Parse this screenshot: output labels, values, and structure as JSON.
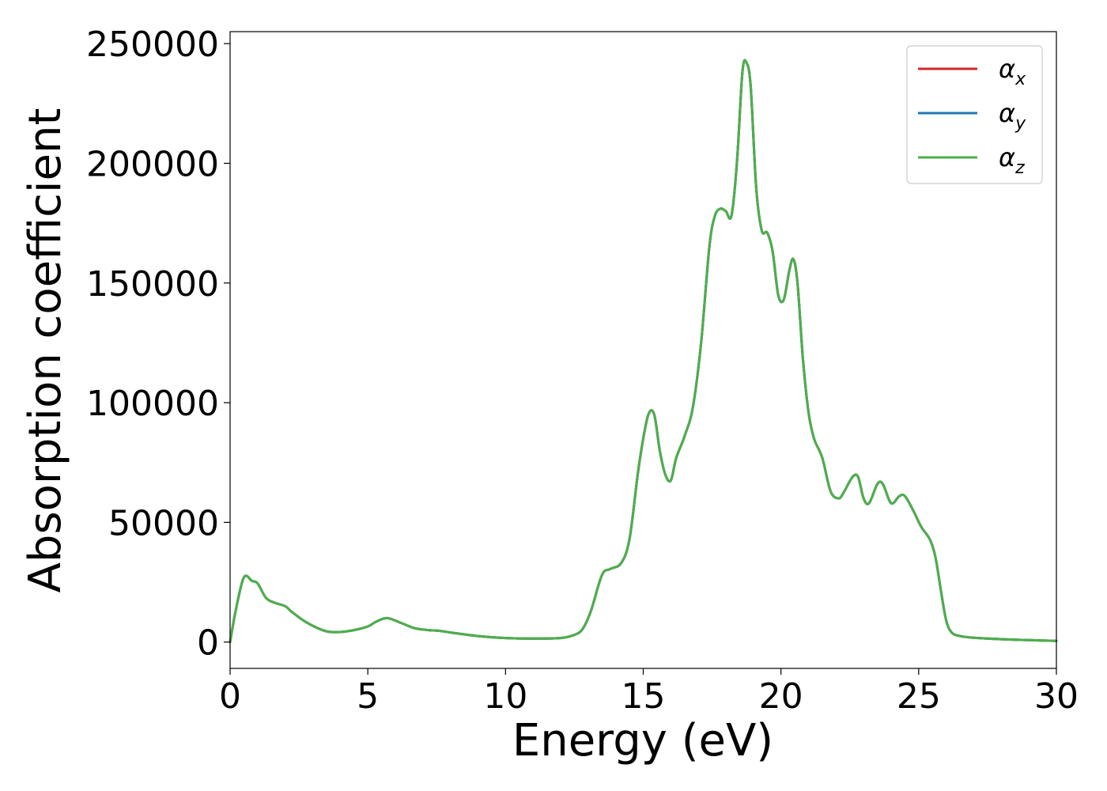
{
  "chart_data": {
    "type": "line",
    "xlabel": "Energy (eV)",
    "ylabel": "Absorption coefficient",
    "xlim": [
      0,
      30
    ],
    "ylim": [
      -11000,
      255000
    ],
    "xticks": [
      0,
      5,
      10,
      15,
      20,
      25,
      30
    ],
    "yticks": [
      0,
      50000,
      100000,
      150000,
      200000,
      250000
    ],
    "grid": false,
    "legend_position": "top-right",
    "series": [
      {
        "name": "α",
        "subscript": "x",
        "color": "#d62728",
        "x": [
          0,
          0.2,
          0.5,
          0.8,
          1.0,
          1.3,
          1.6,
          2.0,
          2.2,
          2.6,
          3.0,
          3.5,
          4.0,
          4.5,
          5.0,
          5.3,
          5.7,
          6.2,
          6.7,
          7.2,
          7.6,
          8.0,
          9.0,
          10.0,
          11.0,
          12.0,
          12.5,
          12.8,
          13.1,
          13.5,
          13.8,
          14.2,
          14.5,
          14.8,
          15.0,
          15.2,
          15.4,
          15.6,
          15.8,
          16.0,
          16.2,
          16.5,
          16.8,
          17.1,
          17.4,
          17.6,
          17.8,
          18.0,
          18.2,
          18.4,
          18.6,
          18.75,
          18.9,
          19.1,
          19.3,
          19.5,
          19.7,
          19.9,
          20.1,
          20.3,
          20.45,
          20.6,
          20.8,
          21.0,
          21.2,
          21.5,
          21.8,
          22.1,
          22.3,
          22.6,
          22.8,
          23.0,
          23.2,
          23.5,
          23.7,
          24.0,
          24.3,
          24.5,
          24.8,
          25.1,
          25.4,
          25.6,
          25.8,
          26.0,
          26.2,
          26.5,
          27.0,
          28.0,
          29.0,
          30.0
        ],
        "y": [
          0,
          13000,
          27000,
          25500,
          24500,
          18500,
          16500,
          15000,
          13000,
          9500,
          6800,
          4500,
          4200,
          5000,
          6500,
          8500,
          10000,
          8000,
          5800,
          5000,
          4700,
          4000,
          2500,
          1700,
          1500,
          1700,
          3000,
          5500,
          13000,
          28000,
          30500,
          33000,
          43000,
          70000,
          85000,
          95500,
          95000,
          80000,
          70000,
          67500,
          77000,
          86000,
          98000,
          125000,
          165000,
          178000,
          181000,
          180000,
          178000,
          200000,
          238000,
          242000,
          232000,
          190000,
          172000,
          171000,
          163000,
          145000,
          143000,
          155000,
          160000,
          150000,
          118000,
          96000,
          85000,
          77000,
          63000,
          60000,
          63000,
          69000,
          69000,
          60000,
          58000,
          66000,
          66000,
          58000,
          61000,
          61000,
          55000,
          48000,
          43000,
          36000,
          22000,
          9000,
          4000,
          2500,
          1800,
          1200,
          800,
          500
        ]
      },
      {
        "name": "α",
        "subscript": "y",
        "color": "#1f77b4",
        "x": [
          0,
          0.2,
          0.5,
          0.8,
          1.0,
          1.3,
          1.6,
          2.0,
          2.2,
          2.6,
          3.0,
          3.5,
          4.0,
          4.5,
          5.0,
          5.3,
          5.7,
          6.2,
          6.7,
          7.2,
          7.6,
          8.0,
          9.0,
          10.0,
          11.0,
          12.0,
          12.5,
          12.8,
          13.1,
          13.5,
          13.8,
          14.2,
          14.5,
          14.8,
          15.0,
          15.2,
          15.4,
          15.6,
          15.8,
          16.0,
          16.2,
          16.5,
          16.8,
          17.1,
          17.4,
          17.6,
          17.8,
          18.0,
          18.2,
          18.4,
          18.6,
          18.75,
          18.9,
          19.1,
          19.3,
          19.5,
          19.7,
          19.9,
          20.1,
          20.3,
          20.45,
          20.6,
          20.8,
          21.0,
          21.2,
          21.5,
          21.8,
          22.1,
          22.3,
          22.6,
          22.8,
          23.0,
          23.2,
          23.5,
          23.7,
          24.0,
          24.3,
          24.5,
          24.8,
          25.1,
          25.4,
          25.6,
          25.8,
          26.0,
          26.2,
          26.5,
          27.0,
          28.0,
          29.0,
          30.0
        ],
        "y": [
          0,
          13000,
          27000,
          25500,
          24500,
          18500,
          16500,
          15000,
          13000,
          9500,
          6800,
          4500,
          4200,
          5000,
          6500,
          8500,
          10000,
          8000,
          5800,
          5000,
          4700,
          4000,
          2500,
          1700,
          1500,
          1700,
          3000,
          5500,
          13000,
          28000,
          30500,
          33000,
          43000,
          70000,
          85000,
          95500,
          95000,
          80000,
          70000,
          67500,
          77000,
          86000,
          98000,
          125000,
          165000,
          178000,
          181000,
          180000,
          178000,
          200000,
          238000,
          242000,
          232000,
          190000,
          172000,
          171000,
          163000,
          145000,
          143000,
          155000,
          160000,
          150000,
          118000,
          96000,
          85000,
          77000,
          63000,
          60000,
          63000,
          69000,
          69000,
          60000,
          58000,
          66000,
          66000,
          58000,
          61000,
          61000,
          55000,
          48000,
          43000,
          36000,
          22000,
          9000,
          4000,
          2500,
          1800,
          1200,
          800,
          500
        ]
      },
      {
        "name": "α",
        "subscript": "z",
        "color": "#4daf4a",
        "x": [
          0,
          0.2,
          0.5,
          0.8,
          1.0,
          1.3,
          1.6,
          2.0,
          2.2,
          2.6,
          3.0,
          3.5,
          4.0,
          4.5,
          5.0,
          5.3,
          5.7,
          6.2,
          6.7,
          7.2,
          7.6,
          8.0,
          9.0,
          10.0,
          11.0,
          12.0,
          12.5,
          12.8,
          13.1,
          13.5,
          13.8,
          14.2,
          14.5,
          14.8,
          15.0,
          15.2,
          15.4,
          15.6,
          15.8,
          16.0,
          16.2,
          16.5,
          16.8,
          17.1,
          17.4,
          17.6,
          17.8,
          18.0,
          18.2,
          18.4,
          18.6,
          18.75,
          18.9,
          19.1,
          19.3,
          19.5,
          19.7,
          19.9,
          20.1,
          20.3,
          20.45,
          20.6,
          20.8,
          21.0,
          21.2,
          21.5,
          21.8,
          22.1,
          22.3,
          22.6,
          22.8,
          23.0,
          23.2,
          23.5,
          23.7,
          24.0,
          24.3,
          24.5,
          24.8,
          25.1,
          25.4,
          25.6,
          25.8,
          26.0,
          26.2,
          26.5,
          27.0,
          28.0,
          29.0,
          30.0
        ],
        "y": [
          0,
          13000,
          27000,
          25500,
          24500,
          18500,
          16500,
          15000,
          13000,
          9500,
          6800,
          4500,
          4200,
          5000,
          6500,
          8500,
          10000,
          8000,
          5800,
          5000,
          4700,
          4000,
          2500,
          1700,
          1500,
          1700,
          3000,
          5500,
          13000,
          28000,
          30500,
          33000,
          43000,
          70000,
          85000,
          95500,
          95000,
          80000,
          70000,
          67500,
          77000,
          86000,
          98000,
          125000,
          165000,
          178000,
          181000,
          180000,
          178000,
          200000,
          238000,
          242000,
          232000,
          190000,
          172000,
          171000,
          163000,
          145000,
          143000,
          155000,
          160000,
          150000,
          118000,
          96000,
          85000,
          77000,
          63000,
          60000,
          63000,
          69000,
          69000,
          60000,
          58000,
          66000,
          66000,
          58000,
          61000,
          61000,
          55000,
          48000,
          43000,
          36000,
          22000,
          9000,
          4000,
          2500,
          1800,
          1200,
          800,
          500
        ]
      }
    ]
  }
}
